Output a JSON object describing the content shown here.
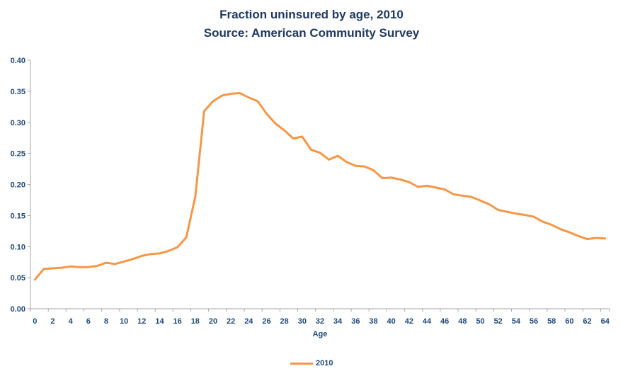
{
  "title": {
    "line1": "Fraction uninsured by age, 2010",
    "line2": "Source: American Community Survey"
  },
  "legend": {
    "label": "2010"
  },
  "colors": {
    "series_orange": "#F79646",
    "title_navy": "#1F3864",
    "label_blue": "#1F497D",
    "axis_gray": "#A6A6A6"
  },
  "chart_data": {
    "type": "line",
    "title": "Fraction uninsured by age, 2010",
    "subtitle": "Source: American Community Survey",
    "xlabel": "Age",
    "ylabel": "",
    "ylim": [
      0,
      0.4
    ],
    "y_tick_step": 0.05,
    "grid": false,
    "legend_position": "bottom",
    "y_tick_labels": [
      "0.00",
      "0.05",
      "0.10",
      "0.15",
      "0.20",
      "0.25",
      "0.30",
      "0.35",
      "0.40"
    ],
    "x_tick_labels": [
      "0",
      "2",
      "4",
      "6",
      "8",
      "10",
      "12",
      "14",
      "16",
      "18",
      "20",
      "22",
      "24",
      "26",
      "28",
      "30",
      "32",
      "34",
      "36",
      "38",
      "40",
      "42",
      "44",
      "46",
      "48",
      "50",
      "52",
      "54",
      "56",
      "58",
      "60",
      "62",
      "64"
    ],
    "series": [
      {
        "name": "2010",
        "color": "#F79646",
        "x": [
          0,
          1,
          2,
          3,
          4,
          5,
          6,
          7,
          8,
          9,
          10,
          11,
          12,
          13,
          14,
          15,
          16,
          17,
          18,
          19,
          20,
          21,
          22,
          23,
          24,
          25,
          26,
          27,
          28,
          29,
          30,
          31,
          32,
          33,
          34,
          35,
          36,
          37,
          38,
          39,
          40,
          41,
          42,
          43,
          44,
          45,
          46,
          47,
          48,
          49,
          50,
          51,
          52,
          53,
          54,
          55,
          56,
          57,
          58,
          59,
          60,
          61,
          62,
          63,
          64
        ],
        "values": [
          0.047,
          0.064,
          0.065,
          0.066,
          0.068,
          0.067,
          0.067,
          0.069,
          0.074,
          0.072,
          0.076,
          0.08,
          0.085,
          0.088,
          0.089,
          0.093,
          0.099,
          0.115,
          0.18,
          0.318,
          0.334,
          0.343,
          0.346,
          0.347,
          0.34,
          0.334,
          0.314,
          0.298,
          0.287,
          0.274,
          0.277,
          0.256,
          0.251,
          0.24,
          0.246,
          0.236,
          0.23,
          0.229,
          0.223,
          0.21,
          0.211,
          0.208,
          0.204,
          0.196,
          0.198,
          0.195,
          0.192,
          0.184,
          0.182,
          0.18,
          0.174,
          0.168,
          0.159,
          0.156,
          0.153,
          0.151,
          0.148,
          0.14,
          0.135,
          0.128,
          0.123,
          0.117,
          0.112,
          0.114,
          0.113
        ]
      }
    ]
  }
}
